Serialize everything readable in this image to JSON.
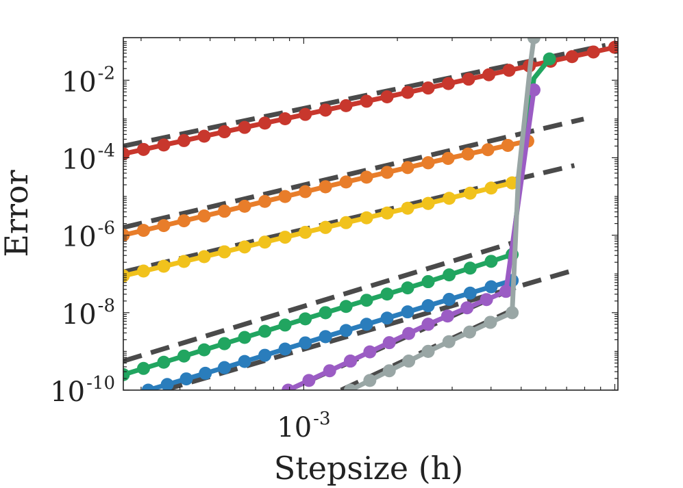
{
  "chart_data": {
    "type": "line",
    "title": "",
    "xlabel": "Stepsize (h)",
    "ylabel": "Error",
    "xscale": "log",
    "yscale": "log",
    "xlim_log10": [
      -3.58,
      -1.99
    ],
    "ylim_log10": [
      -10,
      -0.9
    ],
    "grid": false,
    "legend": "none",
    "x_ticks": [
      {
        "base": "10",
        "exp": "-3",
        "log10": -3
      }
    ],
    "y_ticks": [
      {
        "base": "10",
        "exp": "-2",
        "log10": -2
      },
      {
        "base": "10",
        "exp": "-4",
        "log10": -4
      },
      {
        "base": "10",
        "exp": "-6",
        "log10": -6
      },
      {
        "base": "10",
        "exp": "-8",
        "log10": -8
      },
      {
        "base": "10",
        "exp": "-10",
        "log10": -10
      }
    ],
    "reference_style": {
      "color": "#4a4a4a",
      "dash": "dashed"
    },
    "series": [
      {
        "name": "red",
        "color": "#c8372d",
        "order": 1,
        "x_log10": [
          -3.58,
          -3.255,
          -2.93,
          -2.6,
          -2.275,
          -2.0
        ],
        "y_log10": [
          -3.9,
          -3.33,
          -2.77,
          -2.2,
          -1.63,
          -1.15
        ],
        "ref": {
          "x_log10": [
            -3.58,
            -2.03
          ],
          "y_log10": [
            -3.7,
            -1.1
          ]
        }
      },
      {
        "name": "orange",
        "color": "#e87d2a",
        "order": 2,
        "x_log10": [
          -3.58,
          -3.255,
          -2.93,
          -2.6,
          -2.28
        ],
        "y_log10": [
          -6.0,
          -5.38,
          -4.75,
          -4.13,
          -3.57
        ],
        "ref": {
          "x_log10": [
            -3.58,
            -2.1
          ],
          "y_log10": [
            -5.8,
            -3.0
          ]
        }
      },
      {
        "name": "yellow",
        "color": "#f1c21c",
        "order": 3,
        "x_log10": [
          -3.58,
          -3.255,
          -2.93,
          -2.6,
          -2.33
        ],
        "y_log10": [
          -7.05,
          -6.43,
          -5.8,
          -5.18,
          -4.65
        ],
        "ref": {
          "x_log10": [
            -3.58,
            -2.13
          ],
          "y_log10": [
            -6.95,
            -4.2
          ]
        }
      },
      {
        "name": "green",
        "color": "#21a560",
        "order": 4,
        "x_log10": [
          -3.58,
          -3.255,
          -2.93,
          -2.6,
          -2.33,
          -2.3,
          -2.26,
          -2.21
        ],
        "y_log10": [
          -9.6,
          -8.8,
          -8.0,
          -7.2,
          -6.5,
          -4.3,
          -1.95,
          -1.45
        ],
        "ref": {
          "x_log10": [
            -3.58,
            -2.33
          ],
          "y_log10": [
            -9.25,
            -6.2
          ]
        }
      },
      {
        "name": "blue",
        "color": "#2a7dbc",
        "order": 5,
        "x_log10": [
          -3.5,
          -3.255,
          -2.93,
          -2.6,
          -2.33
        ],
        "y_log10": [
          -10.0,
          -9.42,
          -8.62,
          -7.82,
          -7.17
        ],
        "ref": {
          "x_log10": [
            -3.45,
            -2.13
          ],
          "y_log10": [
            -10.0,
            -6.9
          ]
        }
      },
      {
        "name": "purple",
        "color": "#9b5cc4",
        "order": 6,
        "x_log10": [
          -3.05,
          -2.85,
          -2.6,
          -2.35,
          -2.26
        ],
        "y_log10": [
          -10.0,
          -9.25,
          -8.3,
          -7.45,
          -2.25
        ],
        "ref": {
          "x_log10": [
            -3.05,
            -2.32
          ],
          "y_log10": [
            -10.0,
            -7.35
          ]
        }
      },
      {
        "name": "gray",
        "color": "#99a6a5",
        "order": 7,
        "x_log10": [
          -2.85,
          -2.6,
          -2.4,
          -2.33,
          -2.31,
          -2.27,
          -2.26
        ],
        "y_log10": [
          -10.0,
          -9.0,
          -8.25,
          -8.0,
          -4.5,
          -1.5,
          -0.9
        ],
        "ref": {
          "x_log10": [
            -2.88,
            -2.32
          ],
          "y_log10": [
            -10.0,
            -7.9
          ]
        }
      }
    ]
  }
}
